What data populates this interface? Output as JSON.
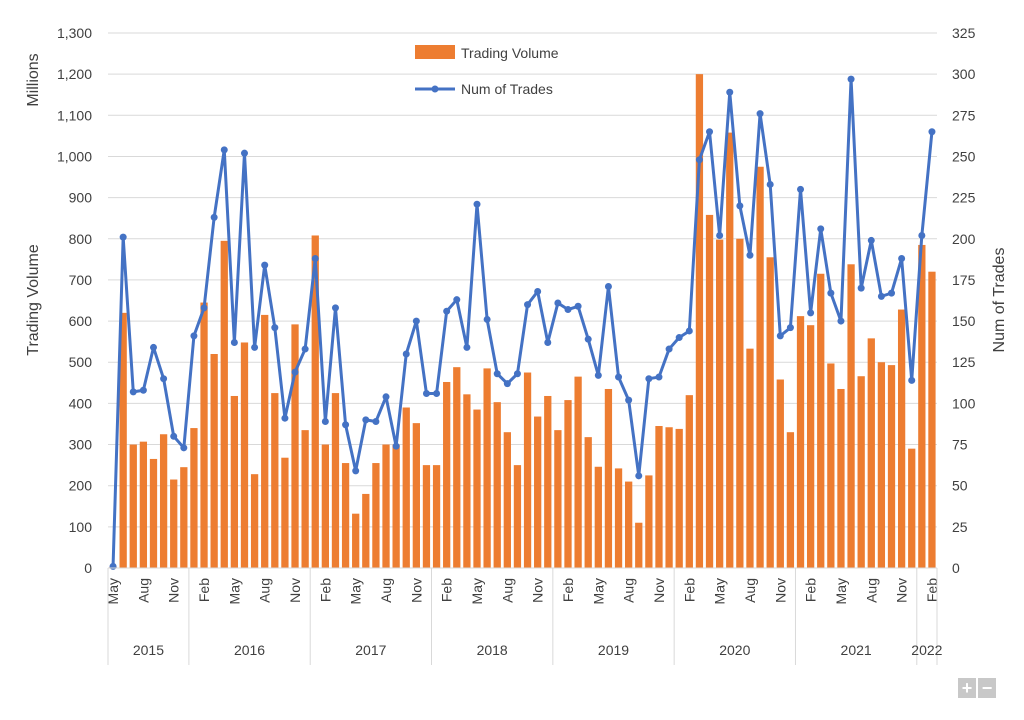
{
  "chart_data": {
    "type": "bar+line",
    "title": "",
    "ylabel": "Trading Volume",
    "ylabel_unit": "Millions",
    "y2label": "Num of Trades",
    "ylim": [
      0,
      1300
    ],
    "y2lim": [
      0,
      325
    ],
    "yticks": [
      "0",
      "100",
      "200",
      "300",
      "400",
      "500",
      "600",
      "700",
      "800",
      "900",
      "1,000",
      "1,100",
      "1,200",
      "1,300"
    ],
    "y2ticks": [
      "0",
      "25",
      "50",
      "75",
      "100",
      "125",
      "150",
      "175",
      "200",
      "225",
      "250",
      "275",
      "300",
      "325"
    ],
    "grid": true,
    "legend_position": "top-center",
    "start_month": "May 2015",
    "x_tick_labels": [
      "May",
      "Aug",
      "Nov",
      "Feb",
      "May",
      "Aug",
      "Nov",
      "Feb",
      "May",
      "Aug",
      "Nov",
      "Feb",
      "May",
      "Aug",
      "Nov",
      "Feb",
      "May",
      "Aug",
      "Nov",
      "Feb",
      "May",
      "Aug",
      "Nov",
      "Feb",
      "May",
      "Aug",
      "Nov",
      "Feb"
    ],
    "years": [
      {
        "label": "2015",
        "months": 8
      },
      {
        "label": "2016",
        "months": 12
      },
      {
        "label": "2017",
        "months": 12
      },
      {
        "label": "2018",
        "months": 12
      },
      {
        "label": "2019",
        "months": 12
      },
      {
        "label": "2020",
        "months": 12
      },
      {
        "label": "2021",
        "months": 12
      },
      {
        "label": "2022",
        "months": 2
      }
    ],
    "series": [
      {
        "name": "Trading Volume",
        "type": "bar",
        "axis": "left",
        "color": "#ED7D31",
        "values": [
          3,
          620,
          300,
          307,
          265,
          325,
          215,
          245,
          340,
          645,
          520,
          795,
          418,
          548,
          228,
          615,
          425,
          268,
          592,
          335,
          808,
          300,
          425,
          255,
          132,
          180,
          255,
          300,
          300,
          390,
          352,
          250,
          250,
          452,
          488,
          422,
          385,
          485,
          403,
          330,
          250,
          475,
          368,
          418,
          335,
          408,
          465,
          318,
          246,
          435,
          242,
          210,
          110,
          225,
          345,
          342,
          338,
          420,
          1200,
          858,
          798,
          1058,
          800,
          533,
          975,
          755,
          458,
          330,
          612,
          590,
          715,
          497,
          435,
          738,
          466,
          558,
          500,
          493,
          628,
          290,
          785,
          720
        ]
      },
      {
        "name": "Num of Trades",
        "type": "line",
        "axis": "right",
        "color": "#4472C4",
        "values": [
          1,
          201,
          107,
          108,
          134,
          115,
          80,
          73,
          141,
          158,
          213,
          254,
          137,
          252,
          134,
          184,
          146,
          91,
          119,
          133,
          188,
          89,
          158,
          87,
          59,
          90,
          89,
          104,
          74,
          130,
          150,
          106,
          106,
          156,
          163,
          134,
          221,
          151,
          118,
          112,
          118,
          160,
          168,
          137,
          161,
          157,
          159,
          139,
          117,
          171,
          116,
          102,
          56,
          115,
          116,
          133,
          140,
          144,
          248,
          265,
          202,
          289,
          220,
          190,
          276,
          233,
          141,
          146,
          230,
          155,
          206,
          167,
          150,
          297,
          170,
          199,
          165,
          167,
          188,
          114,
          202,
          265
        ]
      }
    ]
  },
  "controls": {
    "zoom_in": "+",
    "zoom_out": "−"
  }
}
